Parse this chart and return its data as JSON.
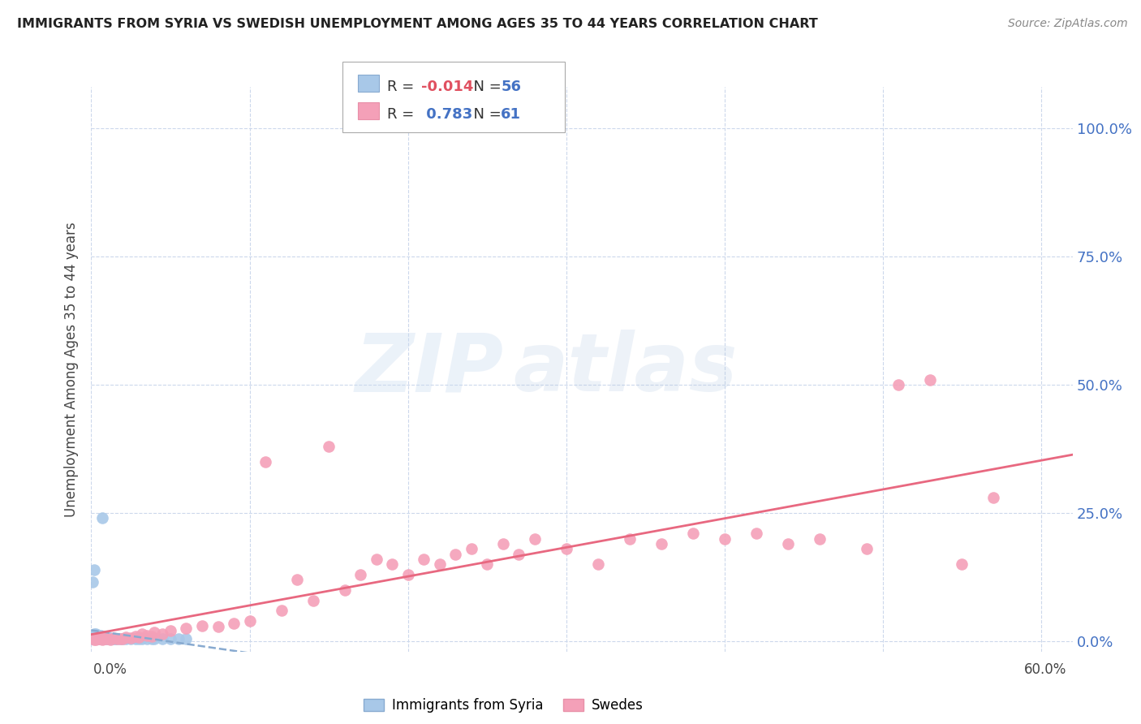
{
  "title": "IMMIGRANTS FROM SYRIA VS SWEDISH UNEMPLOYMENT AMONG AGES 35 TO 44 YEARS CORRELATION CHART",
  "source": "Source: ZipAtlas.com",
  "ylabel": "Unemployment Among Ages 35 to 44 years",
  "xlim": [
    0.0,
    0.62
  ],
  "ylim": [
    -0.02,
    1.08
  ],
  "yticks": [
    0.0,
    0.25,
    0.5,
    0.75,
    1.0
  ],
  "ytick_labels": [
    "0.0%",
    "25.0%",
    "50.0%",
    "75.0%",
    "100.0%"
  ],
  "xticks": [
    0.0,
    0.1,
    0.2,
    0.3,
    0.4,
    0.5,
    0.6
  ],
  "syria_color": "#a8c8e8",
  "swedes_color": "#f4a0b8",
  "syria_line_color": "#88aad0",
  "swedes_line_color": "#e86880",
  "r_syria": -0.014,
  "n_syria": 56,
  "r_swedes": 0.783,
  "n_swedes": 61,
  "background_color": "#ffffff",
  "grid_color": "#ccd8ec",
  "syria_x": [
    0.001,
    0.001,
    0.001,
    0.001,
    0.002,
    0.002,
    0.002,
    0.002,
    0.002,
    0.003,
    0.003,
    0.003,
    0.003,
    0.003,
    0.004,
    0.004,
    0.004,
    0.004,
    0.005,
    0.005,
    0.005,
    0.005,
    0.006,
    0.006,
    0.006,
    0.007,
    0.007,
    0.008,
    0.008,
    0.009,
    0.009,
    0.01,
    0.01,
    0.011,
    0.012,
    0.013,
    0.014,
    0.015,
    0.016,
    0.018,
    0.02,
    0.022,
    0.025,
    0.028,
    0.03,
    0.032,
    0.035,
    0.038,
    0.04,
    0.045,
    0.05,
    0.055,
    0.06,
    0.001,
    0.002,
    0.007
  ],
  "syria_y": [
    0.005,
    0.008,
    0.01,
    0.012,
    0.005,
    0.008,
    0.01,
    0.015,
    0.012,
    0.005,
    0.008,
    0.01,
    0.015,
    0.012,
    0.005,
    0.008,
    0.012,
    0.01,
    0.005,
    0.01,
    0.012,
    0.008,
    0.005,
    0.01,
    0.012,
    0.005,
    0.008,
    0.005,
    0.01,
    0.005,
    0.008,
    0.005,
    0.01,
    0.005,
    0.005,
    0.005,
    0.005,
    0.005,
    0.005,
    0.005,
    0.005,
    0.005,
    0.005,
    0.005,
    0.005,
    0.005,
    0.005,
    0.005,
    0.005,
    0.005,
    0.005,
    0.005,
    0.005,
    0.115,
    0.14,
    0.24
  ],
  "swedes_x": [
    0.002,
    0.003,
    0.004,
    0.005,
    0.006,
    0.007,
    0.008,
    0.009,
    0.01,
    0.012,
    0.014,
    0.016,
    0.018,
    0.02,
    0.022,
    0.025,
    0.028,
    0.03,
    0.032,
    0.035,
    0.038,
    0.04,
    0.045,
    0.05,
    0.06,
    0.07,
    0.08,
    0.09,
    0.1,
    0.11,
    0.12,
    0.13,
    0.14,
    0.15,
    0.16,
    0.17,
    0.18,
    0.19,
    0.2,
    0.21,
    0.22,
    0.23,
    0.24,
    0.25,
    0.26,
    0.27,
    0.28,
    0.3,
    0.32,
    0.34,
    0.36,
    0.38,
    0.4,
    0.42,
    0.44,
    0.46,
    0.49,
    0.51,
    0.53,
    0.55,
    0.57
  ],
  "swedes_y": [
    0.004,
    0.004,
    0.005,
    0.005,
    0.006,
    0.004,
    0.005,
    0.006,
    0.005,
    0.004,
    0.006,
    0.005,
    0.005,
    0.005,
    0.008,
    0.006,
    0.01,
    0.008,
    0.015,
    0.012,
    0.01,
    0.018,
    0.015,
    0.02,
    0.025,
    0.03,
    0.028,
    0.035,
    0.04,
    0.35,
    0.06,
    0.12,
    0.08,
    0.38,
    0.1,
    0.13,
    0.16,
    0.15,
    0.13,
    0.16,
    0.15,
    0.17,
    0.18,
    0.15,
    0.19,
    0.17,
    0.2,
    0.18,
    0.15,
    0.2,
    0.19,
    0.21,
    0.2,
    0.21,
    0.19,
    0.2,
    0.18,
    0.5,
    0.51,
    0.15,
    0.28
  ]
}
